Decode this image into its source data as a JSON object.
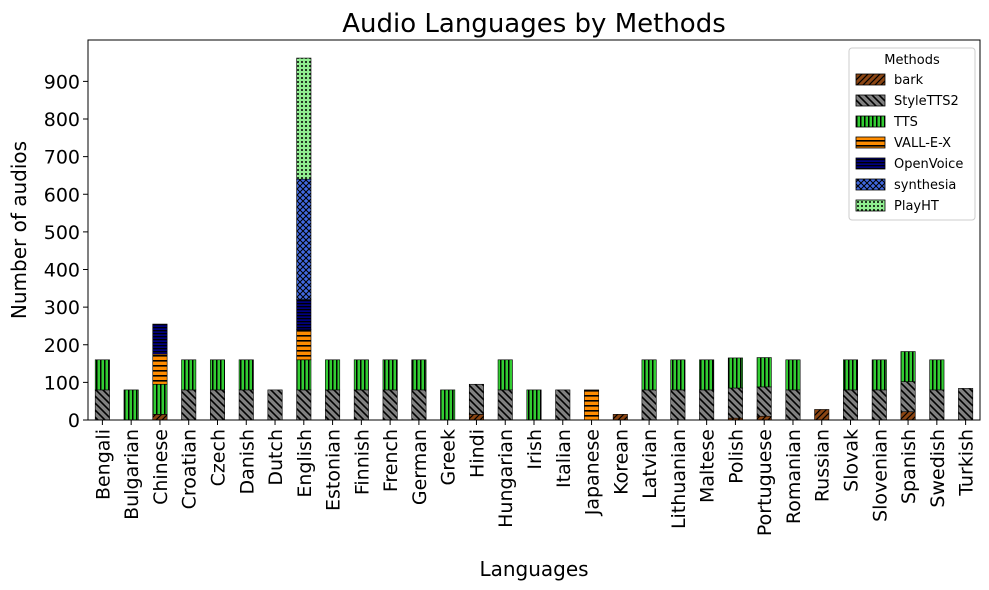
{
  "chart_data": {
    "type": "bar",
    "stacked": true,
    "title": "Audio Languages by Methods",
    "xlabel": "Languages",
    "ylabel": "Number of audios",
    "ylim": [
      0,
      1010
    ],
    "yticks": [
      0,
      100,
      200,
      300,
      400,
      500,
      600,
      700,
      800,
      900
    ],
    "legend": {
      "title": "Methods",
      "placement": "top-right"
    },
    "categories": [
      "Bengali",
      "Bulgarian",
      "Chinese",
      "Croatian",
      "Czech",
      "Danish",
      "Dutch",
      "English",
      "Estonian",
      "Finnish",
      "French",
      "German",
      "Greek",
      "Hindi",
      "Hungarian",
      "Irish",
      "Italian",
      "Japanese",
      "Korean",
      "Latvian",
      "Lithuanian",
      "Maltese",
      "Polish",
      "Portuguese",
      "Romanian",
      "Russian",
      "Slovak",
      "Slovenian",
      "Spanish",
      "Swedish",
      "Turkish"
    ],
    "series": [
      {
        "name": "bark",
        "color": "#8B4513",
        "pattern": "diag-fwd",
        "values": [
          0,
          0,
          15,
          0,
          0,
          0,
          0,
          0,
          0,
          0,
          0,
          0,
          0,
          15,
          0,
          0,
          0,
          0,
          15,
          0,
          0,
          0,
          5,
          10,
          0,
          28,
          0,
          0,
          22,
          0,
          0
        ]
      },
      {
        "name": "StyleTTS2",
        "color": "#808080",
        "pattern": "diag-back",
        "values": [
          80,
          0,
          0,
          80,
          80,
          80,
          80,
          80,
          80,
          80,
          80,
          80,
          0,
          80,
          80,
          0,
          80,
          0,
          0,
          80,
          80,
          80,
          80,
          78,
          80,
          0,
          80,
          80,
          80,
          80,
          84
        ]
      },
      {
        "name": "TTS",
        "color": "#32CD32",
        "pattern": "vertical",
        "values": [
          80,
          80,
          80,
          80,
          80,
          80,
          0,
          80,
          80,
          80,
          80,
          80,
          80,
          0,
          80,
          80,
          0,
          0,
          0,
          80,
          80,
          80,
          80,
          78,
          80,
          0,
          80,
          80,
          80,
          80,
          0
        ]
      },
      {
        "name": "VALL-E-X",
        "color": "#FF8C00",
        "pattern": "horizontal",
        "values": [
          0,
          0,
          80,
          0,
          0,
          0,
          0,
          80,
          0,
          0,
          0,
          0,
          0,
          0,
          0,
          0,
          0,
          80,
          0,
          0,
          0,
          0,
          0,
          0,
          0,
          0,
          0,
          0,
          0,
          0,
          0
        ]
      },
      {
        "name": "OpenVoice",
        "color": "#000080",
        "pattern": "dense-h",
        "values": [
          0,
          0,
          80,
          0,
          0,
          0,
          0,
          80,
          0,
          0,
          0,
          0,
          0,
          0,
          0,
          0,
          0,
          0,
          0,
          0,
          0,
          0,
          0,
          0,
          0,
          0,
          0,
          0,
          0,
          0,
          0
        ]
      },
      {
        "name": "synthesia",
        "color": "#4169E1",
        "pattern": "cross",
        "values": [
          0,
          0,
          0,
          0,
          0,
          0,
          0,
          320,
          0,
          0,
          0,
          0,
          0,
          0,
          0,
          0,
          0,
          0,
          0,
          0,
          0,
          0,
          0,
          0,
          0,
          0,
          0,
          0,
          0,
          0,
          0
        ]
      },
      {
        "name": "PlayHT",
        "color": "#90EE90",
        "pattern": "dots",
        "values": [
          0,
          0,
          0,
          0,
          0,
          0,
          0,
          322,
          0,
          0,
          0,
          0,
          0,
          0,
          0,
          0,
          0,
          0,
          0,
          0,
          0,
          0,
          0,
          0,
          0,
          0,
          0,
          0,
          0,
          0,
          0
        ]
      }
    ]
  }
}
